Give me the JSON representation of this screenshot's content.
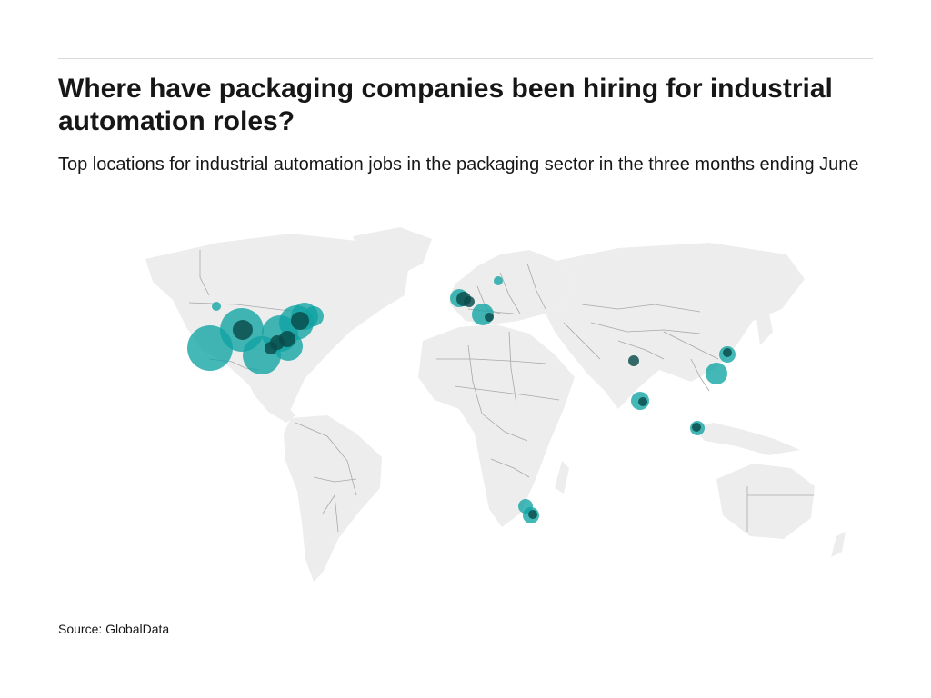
{
  "header": {
    "title": "Where have packaging companies been hiring for industrial automation roles?",
    "subtitle": "Top locations for industrial automation jobs in the packaging sector in the three months ending June"
  },
  "footer": {
    "source": "Source: GlobalData"
  },
  "map": {
    "projection": "world",
    "bubble_color": "#0fa3a3",
    "overlap_color": "#0a4a4a",
    "land_color": "#ededed",
    "border_color": "#a8a8a8"
  }
}
